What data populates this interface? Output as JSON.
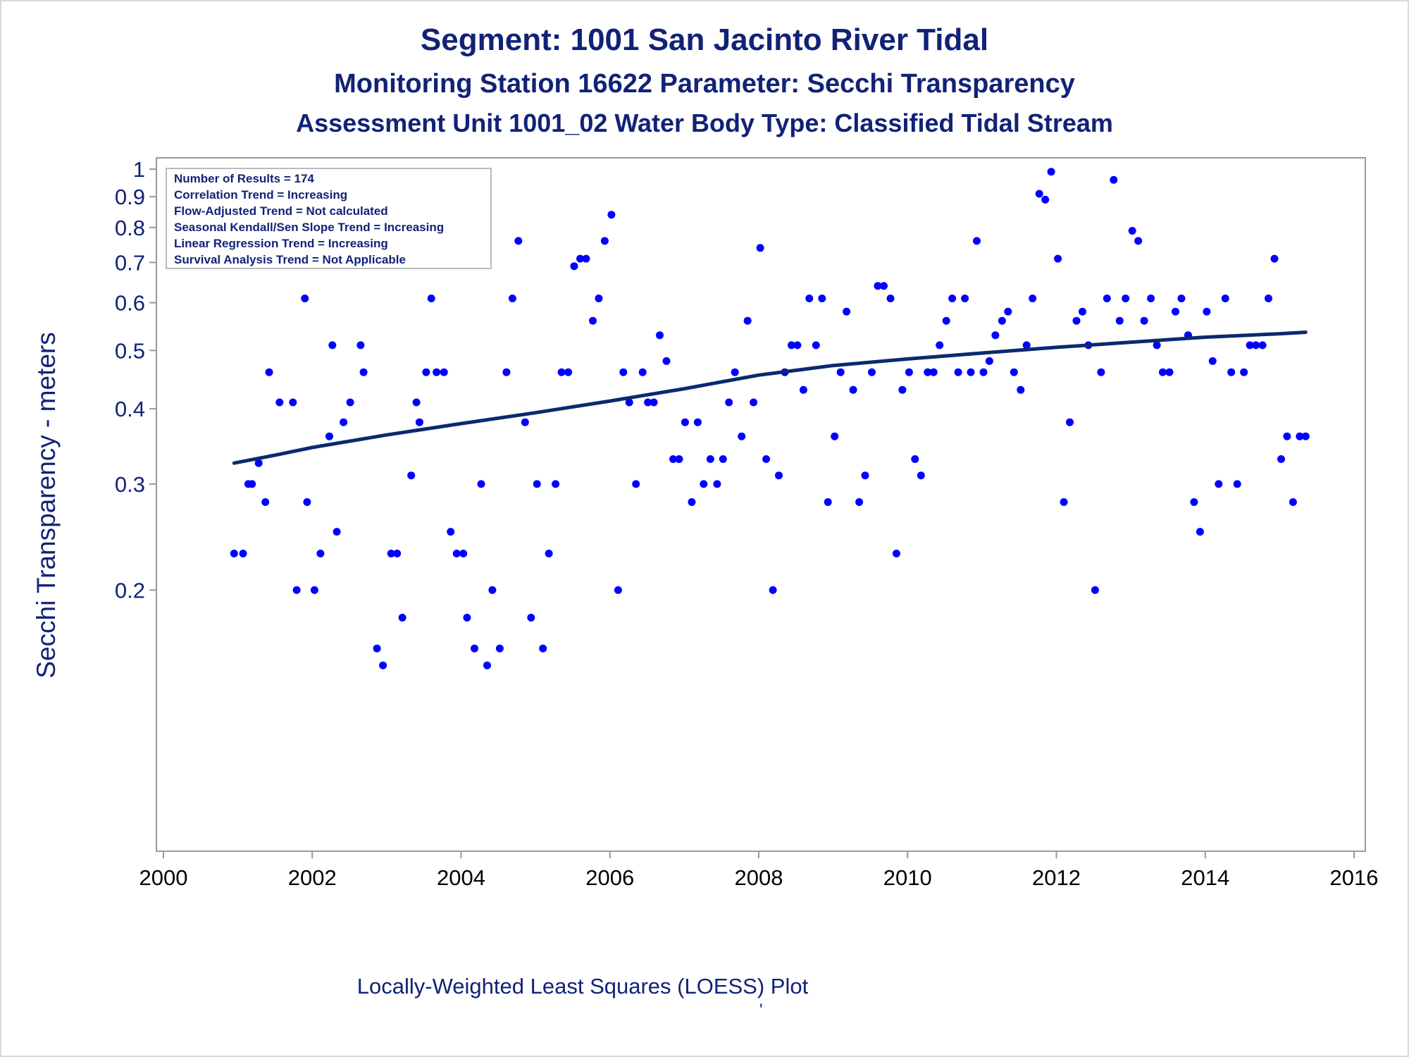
{
  "title": "Segment: 1001  San Jacinto River Tidal",
  "subtitle1": "Monitoring Station 16622 Parameter: Secchi Transparency",
  "subtitle2": "Assessment Unit 1001_02   Water Body Type: Classified Tidal Stream",
  "footnote": "Locally-Weighted Least Squares (LOESS) Plot",
  "footmark": "'",
  "stats": [
    "Number of Results = 174",
    "Correlation Trend = Increasing",
    "Flow-Adjusted Trend = Not calculated",
    "Seasonal Kendall/Sen Slope Trend = Increasing",
    "Linear Regression Trend = Increasing",
    "Survival Analysis Trend = Not Applicable"
  ],
  "colors": {
    "text": "#112277",
    "points": "#0000ff",
    "loess": "#0a2a6e",
    "axis": "#999999"
  },
  "chart_data": {
    "type": "scatter",
    "xlabel": "",
    "ylabel": "Secchi Transparency - meters",
    "xscale": "time",
    "yscale": "log",
    "xlim": [
      2000,
      2016
    ],
    "ylim": [
      0.15,
      1.0
    ],
    "xticks": [
      "2000",
      "2002",
      "2004",
      "2006",
      "2008",
      "2010",
      "2012",
      "2014",
      "2016"
    ],
    "yticks": [
      "0.2",
      "0.3",
      "0.4",
      "0.5",
      "0.6",
      "0.7",
      "0.8",
      "0.9",
      "1"
    ],
    "legend": "top-left",
    "series": [
      {
        "type": "scatter",
        "points": [
          [
            2000.95,
            0.23
          ],
          [
            2001.07,
            0.23
          ],
          [
            2001.14,
            0.3
          ],
          [
            2001.19,
            0.3
          ],
          [
            2001.28,
            0.325
          ],
          [
            2001.37,
            0.28
          ],
          [
            2001.42,
            0.46
          ],
          [
            2001.56,
            0.41
          ],
          [
            2001.65,
            0.76
          ],
          [
            2001.74,
            0.41
          ],
          [
            2001.79,
            0.2
          ],
          [
            2001.9,
            0.61
          ],
          [
            2001.93,
            0.28
          ],
          [
            2002.03,
            0.2
          ],
          [
            2002.11,
            0.23
          ],
          [
            2002.23,
            0.36
          ],
          [
            2002.27,
            0.51
          ],
          [
            2002.33,
            0.25
          ],
          [
            2002.42,
            0.38
          ],
          [
            2002.51,
            0.41
          ],
          [
            2002.65,
            0.51
          ],
          [
            2002.69,
            0.46
          ],
          [
            2002.78,
            0.76
          ],
          [
            2002.87,
            0.16
          ],
          [
            2002.95,
            0.15
          ],
          [
            2003.06,
            0.23
          ],
          [
            2003.14,
            0.23
          ],
          [
            2003.21,
            0.18
          ],
          [
            2003.33,
            0.31
          ],
          [
            2003.4,
            0.41
          ],
          [
            2003.44,
            0.38
          ],
          [
            2003.53,
            0.46
          ],
          [
            2003.6,
            0.61
          ],
          [
            2003.67,
            0.46
          ],
          [
            2003.77,
            0.46
          ],
          [
            2003.86,
            0.25
          ],
          [
            2003.94,
            0.23
          ],
          [
            2004.03,
            0.23
          ],
          [
            2004.08,
            0.18
          ],
          [
            2004.18,
            0.16
          ],
          [
            2004.27,
            0.3
          ],
          [
            2004.35,
            0.15
          ],
          [
            2004.42,
            0.2
          ],
          [
            2004.52,
            0.16
          ],
          [
            2004.61,
            0.46
          ],
          [
            2004.69,
            0.61
          ],
          [
            2004.77,
            0.76
          ],
          [
            2004.86,
            0.38
          ],
          [
            2004.94,
            0.18
          ],
          [
            2005.02,
            0.3
          ],
          [
            2005.1,
            0.16
          ],
          [
            2005.18,
            0.23
          ],
          [
            2005.27,
            0.3
          ],
          [
            2005.35,
            0.46
          ],
          [
            2005.44,
            0.46
          ],
          [
            2005.52,
            0.69
          ],
          [
            2005.6,
            0.71
          ],
          [
            2005.68,
            0.71
          ],
          [
            2005.77,
            0.56
          ],
          [
            2005.85,
            0.61
          ],
          [
            2005.93,
            0.76
          ],
          [
            2006.02,
            0.84
          ],
          [
            2006.11,
            0.2
          ],
          [
            2006.18,
            0.46
          ],
          [
            2006.26,
            0.41
          ],
          [
            2006.35,
            0.3
          ],
          [
            2006.44,
            0.46
          ],
          [
            2006.51,
            0.41
          ],
          [
            2006.59,
            0.41
          ],
          [
            2006.67,
            0.53
          ],
          [
            2006.76,
            0.48
          ],
          [
            2006.85,
            0.33
          ],
          [
            2006.93,
            0.33
          ],
          [
            2007.01,
            0.38
          ],
          [
            2007.1,
            0.28
          ],
          [
            2007.18,
            0.38
          ],
          [
            2007.26,
            0.3
          ],
          [
            2007.35,
            0.33
          ],
          [
            2007.44,
            0.3
          ],
          [
            2007.52,
            0.33
          ],
          [
            2007.6,
            0.41
          ],
          [
            2007.68,
            0.46
          ],
          [
            2007.77,
            0.36
          ],
          [
            2007.85,
            0.56
          ],
          [
            2007.93,
            0.41
          ],
          [
            2008.02,
            0.74
          ],
          [
            2008.1,
            0.33
          ],
          [
            2008.19,
            0.2
          ],
          [
            2008.27,
            0.31
          ],
          [
            2008.35,
            0.46
          ],
          [
            2008.44,
            0.51
          ],
          [
            2008.52,
            0.51
          ],
          [
            2008.6,
            0.43
          ],
          [
            2008.68,
            0.61
          ],
          [
            2008.77,
            0.51
          ],
          [
            2008.85,
            0.61
          ],
          [
            2008.93,
            0.28
          ],
          [
            2009.02,
            0.36
          ],
          [
            2009.1,
            0.46
          ],
          [
            2009.18,
            0.58
          ],
          [
            2009.27,
            0.43
          ],
          [
            2009.35,
            0.28
          ],
          [
            2009.43,
            0.31
          ],
          [
            2009.52,
            0.46
          ],
          [
            2009.6,
            0.64
          ],
          [
            2009.68,
            0.64
          ],
          [
            2009.77,
            0.61
          ],
          [
            2009.85,
            0.23
          ],
          [
            2009.93,
            0.43
          ],
          [
            2010.02,
            0.46
          ],
          [
            2010.1,
            0.33
          ],
          [
            2010.18,
            0.31
          ],
          [
            2010.27,
            0.46
          ],
          [
            2010.35,
            0.46
          ],
          [
            2010.43,
            0.51
          ],
          [
            2010.52,
            0.56
          ],
          [
            2010.6,
            0.61
          ],
          [
            2010.68,
            0.46
          ],
          [
            2010.77,
            0.61
          ],
          [
            2010.85,
            0.46
          ],
          [
            2010.93,
            0.76
          ],
          [
            2011.02,
            0.46
          ],
          [
            2011.1,
            0.48
          ],
          [
            2011.18,
            0.53
          ],
          [
            2011.27,
            0.56
          ],
          [
            2011.35,
            0.58
          ],
          [
            2011.43,
            0.46
          ],
          [
            2011.52,
            0.43
          ],
          [
            2011.6,
            0.51
          ],
          [
            2011.68,
            0.61
          ],
          [
            2011.77,
            0.91
          ],
          [
            2011.85,
            0.89
          ],
          [
            2011.93,
            0.99
          ],
          [
            2012.02,
            0.71
          ],
          [
            2012.1,
            0.28
          ],
          [
            2012.18,
            0.38
          ],
          [
            2012.27,
            0.56
          ],
          [
            2012.35,
            0.58
          ],
          [
            2012.43,
            0.51
          ],
          [
            2012.52,
            0.2
          ],
          [
            2012.6,
            0.46
          ],
          [
            2012.68,
            0.61
          ],
          [
            2012.77,
            0.96
          ],
          [
            2012.85,
            0.56
          ],
          [
            2012.93,
            0.61
          ],
          [
            2013.02,
            0.79
          ],
          [
            2013.1,
            0.76
          ],
          [
            2013.18,
            0.56
          ],
          [
            2013.27,
            0.61
          ],
          [
            2013.35,
            0.51
          ],
          [
            2013.43,
            0.46
          ],
          [
            2013.52,
            0.46
          ],
          [
            2013.6,
            0.58
          ],
          [
            2013.68,
            0.61
          ],
          [
            2013.77,
            0.53
          ],
          [
            2013.85,
            0.28
          ],
          [
            2013.93,
            0.25
          ],
          [
            2014.02,
            0.58
          ],
          [
            2014.1,
            0.48
          ],
          [
            2014.18,
            0.3
          ],
          [
            2014.27,
            0.61
          ],
          [
            2014.35,
            0.46
          ],
          [
            2014.43,
            0.3
          ],
          [
            2014.52,
            0.46
          ],
          [
            2014.6,
            0.51
          ],
          [
            2014.68,
            0.51
          ],
          [
            2014.77,
            0.51
          ],
          [
            2014.85,
            0.61
          ],
          [
            2014.93,
            0.71
          ],
          [
            2015.02,
            0.33
          ],
          [
            2015.1,
            0.36
          ],
          [
            2015.18,
            0.28
          ],
          [
            2015.27,
            0.36
          ],
          [
            2015.35,
            0.36
          ]
        ]
      },
      {
        "type": "line",
        "points": [
          [
            2000.95,
            0.325
          ],
          [
            2001.5,
            0.335
          ],
          [
            2002.0,
            0.345
          ],
          [
            2003.0,
            0.362
          ],
          [
            2004.0,
            0.378
          ],
          [
            2005.0,
            0.394
          ],
          [
            2006.0,
            0.412
          ],
          [
            2007.0,
            0.432
          ],
          [
            2008.0,
            0.455
          ],
          [
            2009.0,
            0.472
          ],
          [
            2010.0,
            0.484
          ],
          [
            2011.0,
            0.495
          ],
          [
            2012.0,
            0.506
          ],
          [
            2013.0,
            0.516
          ],
          [
            2014.0,
            0.526
          ],
          [
            2015.0,
            0.533
          ],
          [
            2015.35,
            0.536
          ]
        ]
      }
    ]
  }
}
